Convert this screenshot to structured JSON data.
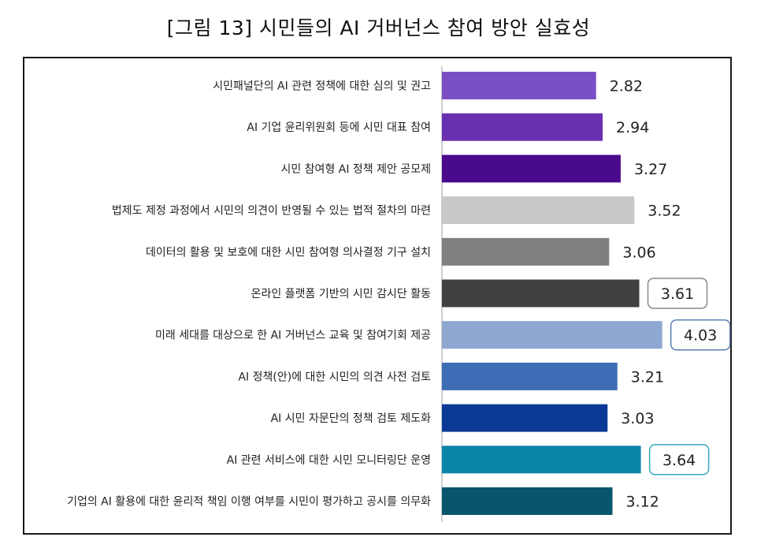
{
  "chart_data": {
    "type": "bar",
    "orientation": "horizontal",
    "title": "[그림 13] 시민들의 AI 거버넌스 참여 방안 실효성",
    "categories": [
      "시민패널단의 AI 관련 정책에 대한 심의 및 권고",
      "AI 기업 윤리위원회 등에 시민 대표 참여",
      "시민 참여형 AI 정책 제안 공모제",
      "법제도 제정 과정에서 시민의 의견이 반영될 수 있는 법적 절차의 마련",
      "데이터의 활용 및 보호에 대한 시민 참여형 의사결정 기구 설치",
      "온라인 플랫폼 기반의 시민 감시단 활동",
      "미래 세대를 대상으로 한 AI 거버넌스 교육 및 참여기회 제공",
      "AI 정책(안)에 대한 시민의 의견 사전 검토",
      "AI 시민 자문단의 정책 검토 제도화",
      "AI 관련 서비스에 대한 시민 모니터링단 운영",
      "기업의 AI 활용에 대한 윤리적 책임 이행 여부를 시민이 평가하고 공시를 의무화"
    ],
    "values": [
      2.82,
      2.94,
      3.27,
      3.52,
      3.06,
      3.61,
      4.03,
      3.21,
      3.03,
      3.64,
      3.12
    ],
    "value_labels": [
      "2.82",
      "2.94",
      "3.27",
      "3.52",
      "3.06",
      "3.61",
      "4.03",
      "3.21",
      "3.03",
      "3.64",
      "3.12"
    ],
    "colors": [
      "#7b4fc4",
      "#6a2fb0",
      "#4a0a8c",
      "#c8c8c8",
      "#7f7f7f",
      "#404040",
      "#8fa8d2",
      "#3e6cb4",
      "#0b3a96",
      "#0a86a9",
      "#08566e"
    ],
    "highlighted": [
      false,
      false,
      false,
      false,
      false,
      true,
      true,
      false,
      false,
      true,
      false
    ],
    "highlight_border_colors": [
      "",
      "",
      "",
      "",
      "",
      "#8a8a8a",
      "#5d7fb6",
      "",
      "",
      "#3aa8c2",
      ""
    ],
    "xlim": [
      0,
      4.4
    ],
    "grid": false,
    "legend": "none"
  }
}
